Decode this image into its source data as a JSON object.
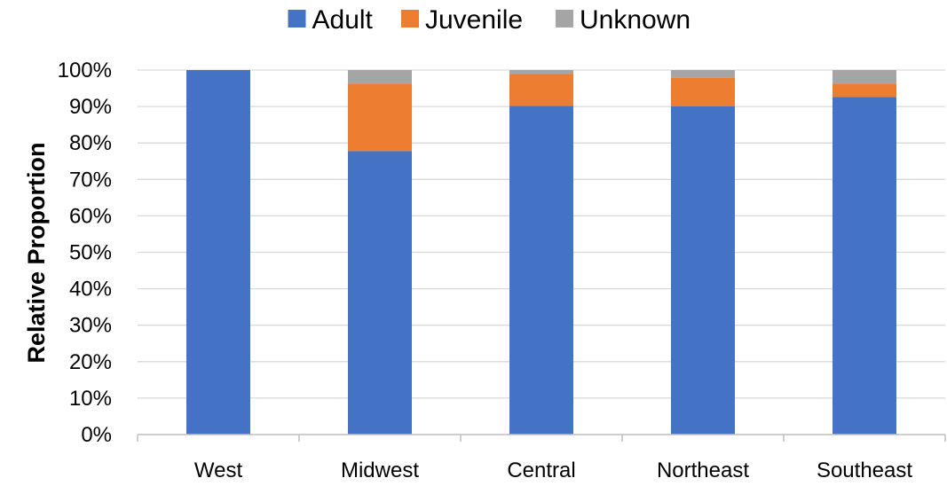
{
  "chart_data": {
    "type": "bar",
    "stacked": true,
    "percent_stacked": true,
    "title": "",
    "xlabel": "",
    "ylabel": "Relative Proportion",
    "ylim": [
      0,
      100
    ],
    "y_ticks": [
      "0%",
      "10%",
      "20%",
      "30%",
      "40%",
      "50%",
      "60%",
      "70%",
      "80%",
      "90%",
      "100%"
    ],
    "grid": true,
    "legend_position": "top",
    "categories": [
      "West",
      "Midwest",
      "Central",
      "Northeast",
      "Southeast"
    ],
    "series": [
      {
        "name": "Adult",
        "color": "#4472C4",
        "values": [
          100,
          77.8,
          90.2,
          90.1,
          92.6
        ]
      },
      {
        "name": "Juvenile",
        "color": "#ED7D31",
        "values": [
          0,
          18.5,
          8.8,
          7.8,
          3.7
        ]
      },
      {
        "name": "Unknown",
        "color": "#A5A5A5",
        "values": [
          0,
          3.7,
          1.0,
          2.1,
          3.7
        ]
      }
    ]
  }
}
